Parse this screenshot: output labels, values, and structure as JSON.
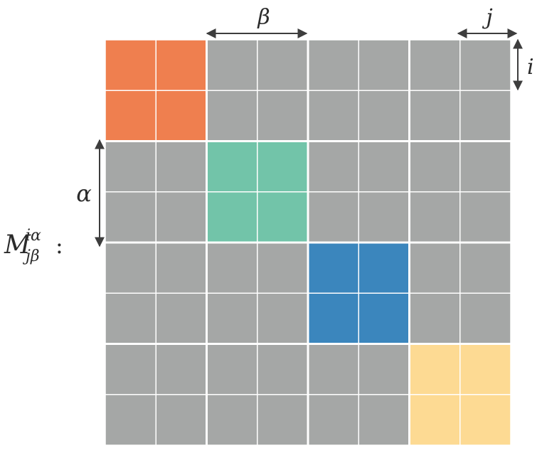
{
  "matrix": {
    "label": "M",
    "sup": "iα",
    "sub": "jβ",
    "colon": ":",
    "blocks": 4,
    "block_size": 2,
    "cell_color": "#a5a7a6",
    "grid_line_color": "#ffffff",
    "diagonal_block_colors": [
      "#ef7f4f",
      "#72c4a9",
      "#3b86bd",
      "#fdda93"
    ]
  },
  "annotations": {
    "beta": "β",
    "j": "j",
    "i": "i",
    "alpha": "α"
  },
  "arrow_color": "#3d3d3d"
}
